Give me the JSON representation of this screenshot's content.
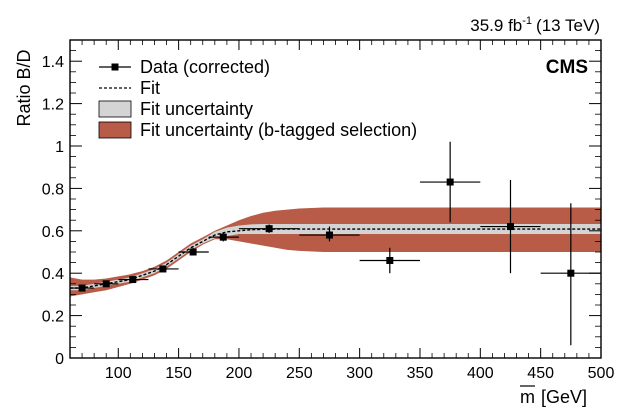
{
  "chart_data": {
    "type": "scatter",
    "lumi_label": "35.9 fb",
    "lumi_exponent": "-1",
    "lumi_energy": "(13 TeV)",
    "experiment": "CMS",
    "xlabel_symbol": "m",
    "xlabel_unit": "[GeV]",
    "ylabel": "Ratio B/D",
    "xlim": [
      60,
      500
    ],
    "ylim": [
      0,
      1.5
    ],
    "x_ticks": [
      "100",
      "150",
      "200",
      "250",
      "300",
      "350",
      "400",
      "450",
      "500"
    ],
    "x_tick_values": [
      100,
      150,
      200,
      250,
      300,
      350,
      400,
      450,
      500
    ],
    "y_ticks": [
      "0",
      "0.2",
      "0.4",
      "0.6",
      "0.8",
      "1",
      "1.2",
      "1.4"
    ],
    "y_tick_values": [
      0,
      0.2,
      0.4,
      0.6,
      0.8,
      1.0,
      1.2,
      1.4
    ],
    "grid": false,
    "legend_position": "top-left",
    "legend": [
      {
        "label": "Data (corrected)",
        "kind": "marker"
      },
      {
        "label": "Fit",
        "kind": "dashed-line"
      },
      {
        "label": "Fit uncertainty",
        "kind": "grey-band"
      },
      {
        "label": "Fit uncertainty (b-tagged selection)",
        "kind": "red-band"
      }
    ],
    "colors": {
      "data": "#000000",
      "fit": "#000000",
      "fit_band": "#d4d4d4",
      "btag_band": "#b85c48"
    },
    "data_points": [
      {
        "x": 70,
        "xlo": 60,
        "xhi": 80,
        "y": 0.33,
        "ylo": 0.32,
        "yhi": 0.34
      },
      {
        "x": 90,
        "xlo": 80,
        "xhi": 100,
        "y": 0.35,
        "ylo": 0.34,
        "yhi": 0.36
      },
      {
        "x": 112,
        "xlo": 100,
        "xhi": 125,
        "y": 0.37,
        "ylo": 0.36,
        "yhi": 0.38
      },
      {
        "x": 137,
        "xlo": 125,
        "xhi": 150,
        "y": 0.42,
        "ylo": 0.41,
        "yhi": 0.43
      },
      {
        "x": 162,
        "xlo": 150,
        "xhi": 175,
        "y": 0.5,
        "ylo": 0.49,
        "yhi": 0.52
      },
      {
        "x": 187,
        "xlo": 175,
        "xhi": 200,
        "y": 0.57,
        "ylo": 0.55,
        "yhi": 0.59
      },
      {
        "x": 225,
        "xlo": 200,
        "xhi": 250,
        "y": 0.61,
        "ylo": 0.59,
        "yhi": 0.63
      },
      {
        "x": 275,
        "xlo": 250,
        "xhi": 300,
        "y": 0.58,
        "ylo": 0.55,
        "yhi": 0.62
      },
      {
        "x": 325,
        "xlo": 300,
        "xhi": 350,
        "y": 0.46,
        "ylo": 0.4,
        "yhi": 0.52
      },
      {
        "x": 375,
        "xlo": 350,
        "xhi": 400,
        "y": 0.83,
        "ylo": 0.64,
        "yhi": 1.02
      },
      {
        "x": 425,
        "xlo": 400,
        "xhi": 450,
        "y": 0.62,
        "ylo": 0.4,
        "yhi": 0.84
      },
      {
        "x": 475,
        "xlo": 450,
        "xhi": 500,
        "y": 0.4,
        "ylo": 0.06,
        "yhi": 0.73
      }
    ],
    "fit_curve": {
      "x": [
        60,
        70,
        80,
        90,
        100,
        110,
        120,
        130,
        140,
        150,
        160,
        170,
        180,
        190,
        200,
        210,
        220,
        230,
        250,
        300,
        350,
        400,
        450,
        500
      ],
      "y": [
        0.33,
        0.33,
        0.34,
        0.35,
        0.36,
        0.37,
        0.39,
        0.41,
        0.44,
        0.48,
        0.52,
        0.55,
        0.58,
        0.595,
        0.6,
        0.605,
        0.607,
        0.608,
        0.608,
        0.608,
        0.608,
        0.608,
        0.608,
        0.608
      ]
    },
    "fit_band": {
      "x": [
        60,
        70,
        80,
        90,
        100,
        110,
        120,
        130,
        140,
        150,
        160,
        170,
        180,
        190,
        200,
        210,
        220,
        230,
        250,
        300,
        350,
        400,
        450,
        500
      ],
      "lo": [
        0.32,
        0.32,
        0.33,
        0.34,
        0.35,
        0.36,
        0.38,
        0.4,
        0.43,
        0.47,
        0.51,
        0.54,
        0.565,
        0.575,
        0.585,
        0.585,
        0.585,
        0.585,
        0.585,
        0.585,
        0.585,
        0.585,
        0.585,
        0.585
      ],
      "hi": [
        0.34,
        0.34,
        0.35,
        0.36,
        0.37,
        0.38,
        0.4,
        0.42,
        0.45,
        0.49,
        0.53,
        0.56,
        0.595,
        0.615,
        0.625,
        0.63,
        0.632,
        0.632,
        0.632,
        0.632,
        0.632,
        0.632,
        0.632,
        0.632
      ]
    },
    "btag_band": {
      "x": [
        60,
        70,
        80,
        90,
        100,
        110,
        120,
        130,
        140,
        150,
        160,
        170,
        180,
        190,
        200,
        210,
        220,
        230,
        240,
        250,
        270,
        300,
        350,
        400,
        450,
        500
      ],
      "lo": [
        0.29,
        0.3,
        0.31,
        0.32,
        0.335,
        0.35,
        0.37,
        0.39,
        0.42,
        0.46,
        0.5,
        0.535,
        0.56,
        0.56,
        0.55,
        0.54,
        0.53,
        0.52,
        0.51,
        0.505,
        0.5,
        0.5,
        0.5,
        0.5,
        0.5,
        0.5
      ],
      "hi": [
        0.38,
        0.37,
        0.37,
        0.375,
        0.385,
        0.395,
        0.41,
        0.43,
        0.46,
        0.5,
        0.54,
        0.57,
        0.6,
        0.625,
        0.65,
        0.67,
        0.685,
        0.695,
        0.7,
        0.705,
        0.71,
        0.71,
        0.71,
        0.71,
        0.71,
        0.71
      ]
    }
  }
}
